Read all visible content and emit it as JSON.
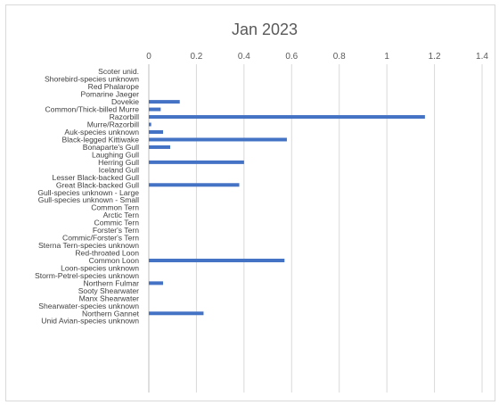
{
  "chart_data": {
    "type": "bar",
    "orientation": "horizontal",
    "title": "Jan 2023",
    "xlabel": "",
    "ylabel": "",
    "xlim": [
      0,
      1.4
    ],
    "x_ticks": [
      "0",
      "0.2",
      "0.4",
      "0.6",
      "0.8",
      "1",
      "1.2",
      "1.4"
    ],
    "x_axis_position": "top",
    "grid": "vertical",
    "bar_color": "#4472c4",
    "categories": [
      "Scoter unid.",
      "Shorebird-species unknown",
      "Red Phalarope",
      "Pomarine Jaeger",
      "Dovekie",
      "Common/Thick-billed Murre",
      "Razorbill",
      "Murre/Razorbill",
      "Auk-species unknown",
      "Black-legged Kittiwake",
      "Bonaparte's Gull",
      "Laughing Gull",
      "Herring Gull",
      "Iceland Gull",
      "Lesser Black-backed Gull",
      "Great Black-backed Gull",
      "Gull-species unknown - Large",
      "Gull-species unknown - Small",
      "Common Tern",
      "Arctic Tern",
      "Commic Tern",
      "Forster's Tern",
      "Commic/Forster's Tern",
      "Sterna Tern-species unknown",
      "Red-throated Loon",
      "Common Loon",
      "Loon-species unknown",
      "Storm-Petrel-species unknown",
      "Northern Fulmar",
      "Sooty Shearwater",
      "Manx Shearwater",
      "Shearwater-species unknown",
      "Northern Gannet",
      "Unid Avian-species unknown"
    ],
    "values": [
      0,
      0,
      0,
      0,
      0.13,
      0.05,
      1.16,
      0.01,
      0.06,
      0.58,
      0.09,
      0,
      0.4,
      0,
      0,
      0.38,
      0,
      0,
      0,
      0,
      0,
      0,
      0,
      0,
      0,
      0.57,
      0,
      0,
      0.06,
      0,
      0,
      0,
      0.23,
      0
    ]
  }
}
